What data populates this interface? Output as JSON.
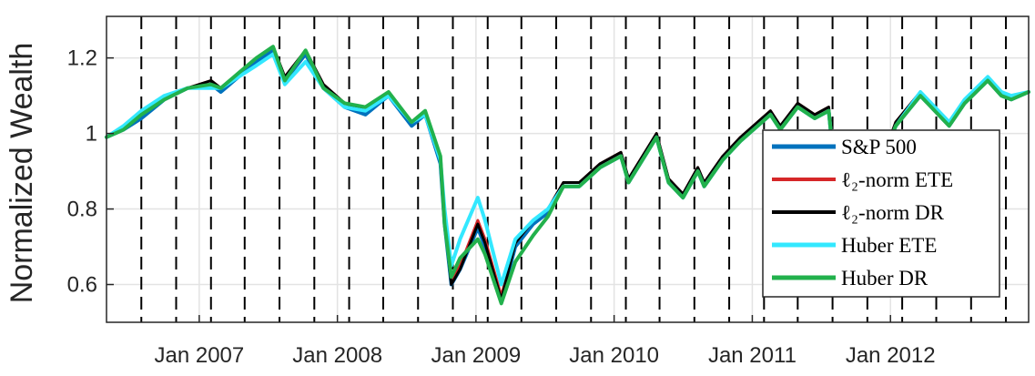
{
  "chart_data": {
    "type": "line",
    "title": "",
    "xlabel": "",
    "ylabel": "Normalized Wealth",
    "xlim": [
      "2006-05-01",
      "2012-12-31"
    ],
    "ylim": [
      0.5,
      1.31
    ],
    "grid": true,
    "legend_position": "right",
    "x_ticks": [
      {
        "date": "2007-01-01",
        "label": "Jan 2007"
      },
      {
        "date": "2008-01-01",
        "label": "Jan 2008"
      },
      {
        "date": "2009-01-01",
        "label": "Jan 2009"
      },
      {
        "date": "2010-01-01",
        "label": "Jan 2010"
      },
      {
        "date": "2011-01-01",
        "label": "Jan 2011"
      },
      {
        "date": "2012-01-01",
        "label": "Jan 2012"
      }
    ],
    "y_ticks": [
      {
        "value": 0.6,
        "label": "0.6"
      },
      {
        "value": 0.8,
        "label": "0.8"
      },
      {
        "value": 1.0,
        "label": "1"
      },
      {
        "value": 1.2,
        "label": "1.2"
      }
    ],
    "vertical_dashed_lines": [
      "2006-08-01",
      "2006-11-01",
      "2007-02-01",
      "2007-05-01",
      "2007-08-01",
      "2007-11-01",
      "2008-02-01",
      "2008-05-01",
      "2008-08-01",
      "2008-11-01",
      "2009-02-01",
      "2009-05-01",
      "2009-08-01",
      "2009-11-01",
      "2010-02-01",
      "2010-05-01",
      "2010-08-01",
      "2010-11-01",
      "2011-02-01",
      "2011-05-01",
      "2011-08-01",
      "2011-11-01",
      "2012-02-01",
      "2012-05-01",
      "2012-08-01",
      "2012-11-01"
    ],
    "x": [
      "2006-05-01",
      "2006-06-15",
      "2006-08-01",
      "2006-10-01",
      "2006-12-01",
      "2007-02-01",
      "2007-02-27",
      "2007-04-15",
      "2007-06-01",
      "2007-07-15",
      "2007-08-15",
      "2007-10-09",
      "2007-11-25",
      "2008-01-20",
      "2008-03-15",
      "2008-05-15",
      "2008-07-15",
      "2008-08-20",
      "2008-09-29",
      "2008-10-10",
      "2008-10-28",
      "2008-11-20",
      "2009-01-06",
      "2009-01-25",
      "2009-03-09",
      "2009-04-15",
      "2009-06-01",
      "2009-07-10",
      "2009-08-20",
      "2009-10-01",
      "2009-11-25",
      "2010-01-19",
      "2010-02-08",
      "2010-04-23",
      "2010-05-25",
      "2010-07-02",
      "2010-08-10",
      "2010-08-27",
      "2010-10-15",
      "2010-12-01",
      "2011-02-18",
      "2011-03-16",
      "2011-05-01",
      "2011-06-15",
      "2011-07-22",
      "2011-08-08",
      "2011-09-01",
      "2011-10-03",
      "2011-10-28",
      "2011-11-25",
      "2012-01-15",
      "2012-03-20",
      "2012-06-04",
      "2012-07-15",
      "2012-09-14",
      "2012-10-20",
      "2012-11-15",
      "2012-12-31"
    ],
    "series": [
      {
        "name": "S&P 500",
        "color": "#0072BD",
        "width": 4,
        "values": [
          0.99,
          1.01,
          1.04,
          1.09,
          1.12,
          1.13,
          1.11,
          1.15,
          1.19,
          1.22,
          1.14,
          1.21,
          1.12,
          1.07,
          1.05,
          1.1,
          1.02,
          1.05,
          0.92,
          0.76,
          0.6,
          0.64,
          0.75,
          0.7,
          0.56,
          0.7,
          0.76,
          0.79,
          0.86,
          0.86,
          0.91,
          0.94,
          0.87,
          0.99,
          0.87,
          0.83,
          0.9,
          0.86,
          0.93,
          0.98,
          1.05,
          1.01,
          1.07,
          1.04,
          1.06,
          0.88,
          0.87,
          0.82,
          0.95,
          0.88,
          1.02,
          1.1,
          1.02,
          1.08,
          1.14,
          1.1,
          1.09,
          1.11
        ]
      },
      {
        "name": "ℓ₂-norm ETE",
        "color": "#D62728",
        "width": 3,
        "values": [
          0.99,
          1.01,
          1.05,
          1.09,
          1.12,
          1.14,
          1.12,
          1.16,
          1.2,
          1.23,
          1.15,
          1.22,
          1.13,
          1.08,
          1.06,
          1.11,
          1.03,
          1.06,
          0.93,
          0.77,
          0.61,
          0.65,
          0.77,
          0.72,
          0.57,
          0.71,
          0.77,
          0.8,
          0.87,
          0.87,
          0.92,
          0.95,
          0.88,
          1.0,
          0.88,
          0.84,
          0.91,
          0.87,
          0.94,
          0.99,
          1.06,
          1.02,
          1.08,
          1.05,
          1.07,
          0.89,
          0.88,
          0.83,
          0.96,
          0.89,
          1.03,
          1.11,
          1.03,
          1.09,
          1.15,
          1.11,
          1.1,
          1.11
        ]
      },
      {
        "name": "ℓ₂-norm DR",
        "color": "#000000",
        "width": 3,
        "values": [
          0.99,
          1.01,
          1.05,
          1.09,
          1.12,
          1.14,
          1.12,
          1.16,
          1.2,
          1.23,
          1.15,
          1.22,
          1.13,
          1.08,
          1.06,
          1.11,
          1.03,
          1.06,
          0.93,
          0.77,
          0.6,
          0.64,
          0.76,
          0.71,
          0.56,
          0.71,
          0.77,
          0.8,
          0.87,
          0.87,
          0.92,
          0.95,
          0.88,
          1.0,
          0.88,
          0.84,
          0.91,
          0.87,
          0.94,
          0.99,
          1.06,
          1.02,
          1.08,
          1.05,
          1.07,
          0.89,
          0.88,
          0.83,
          0.96,
          0.89,
          1.03,
          1.11,
          1.03,
          1.09,
          1.15,
          1.11,
          1.1,
          1.11
        ]
      },
      {
        "name": "Huber ETE",
        "color": "#33E8FF",
        "width": 4,
        "values": [
          0.99,
          1.02,
          1.06,
          1.1,
          1.12,
          1.12,
          1.12,
          1.15,
          1.18,
          1.21,
          1.13,
          1.19,
          1.12,
          1.07,
          1.06,
          1.1,
          1.03,
          1.05,
          0.93,
          0.8,
          0.65,
          0.72,
          0.83,
          0.77,
          0.6,
          0.72,
          0.77,
          0.8,
          0.86,
          0.86,
          0.91,
          0.94,
          0.87,
          0.99,
          0.87,
          0.83,
          0.9,
          0.86,
          0.93,
          0.98,
          1.05,
          1.01,
          1.07,
          1.04,
          1.06,
          0.89,
          0.88,
          0.83,
          0.95,
          0.89,
          1.02,
          1.11,
          1.03,
          1.09,
          1.15,
          1.11,
          1.1,
          1.11
        ]
      },
      {
        "name": "Huber DR",
        "color": "#22B14C",
        "width": 4,
        "values": [
          0.99,
          1.01,
          1.05,
          1.09,
          1.12,
          1.13,
          1.12,
          1.16,
          1.2,
          1.23,
          1.14,
          1.22,
          1.12,
          1.08,
          1.07,
          1.11,
          1.03,
          1.06,
          0.94,
          0.76,
          0.62,
          0.67,
          0.72,
          0.68,
          0.55,
          0.66,
          0.73,
          0.78,
          0.86,
          0.86,
          0.91,
          0.94,
          0.87,
          0.99,
          0.87,
          0.83,
          0.9,
          0.86,
          0.93,
          0.98,
          1.05,
          1.01,
          1.07,
          1.04,
          1.06,
          0.89,
          0.88,
          0.83,
          0.95,
          0.89,
          1.02,
          1.1,
          1.02,
          1.08,
          1.14,
          1.1,
          1.09,
          1.11
        ]
      }
    ]
  }
}
